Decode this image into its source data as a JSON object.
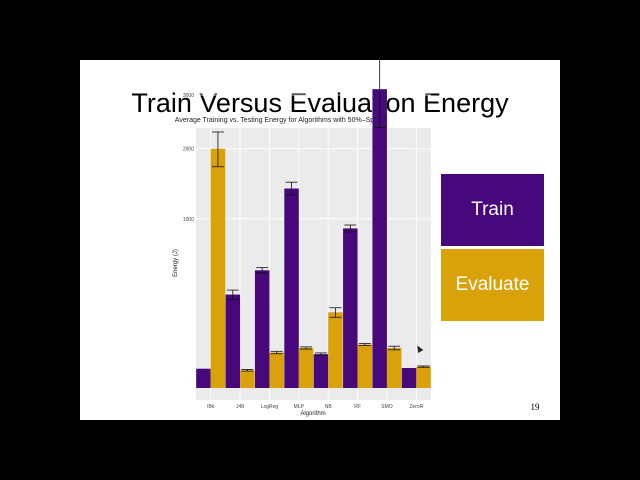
{
  "slide": {
    "title": "Train Versus Evaluation Energy",
    "page_number": "19"
  },
  "legend": {
    "train_label": "Train",
    "evaluate_label": "Evaluate",
    "train_color": "#46087a",
    "evaluate_color": "#d9a20a"
  },
  "chart_data": {
    "type": "bar",
    "title": "Average Training vs. Testing Energy for Algorithms with 50%–Split",
    "xlabel": "Algorithm",
    "ylabel": "Energy (J)",
    "y_scale": "sqrt",
    "ylim": [
      0,
      4500
    ],
    "yticks": [
      1000,
      2000,
      3000,
      4000
    ],
    "categories": [
      "IBk",
      "J48",
      "LogReg",
      "MLP",
      "NB",
      "RF",
      "SMO",
      "ZeroR"
    ],
    "series": [
      {
        "color": "#46087a",
        "values": [
          13,
          305,
          484,
          1390,
          40,
          890,
          3120,
          14
        ],
        "error": [
          0,
          30,
          22,
          90,
          3,
          38,
          750,
          0
        ]
      },
      {
        "color": "#d9a20a",
        "values": [
          2000,
          11,
          44,
          56,
          200,
          66,
          56,
          16
        ],
        "error": [
          290,
          1,
          3,
          3,
          25,
          3,
          5,
          1
        ]
      }
    ],
    "grid": true,
    "panel_background": "#ebebeb"
  }
}
